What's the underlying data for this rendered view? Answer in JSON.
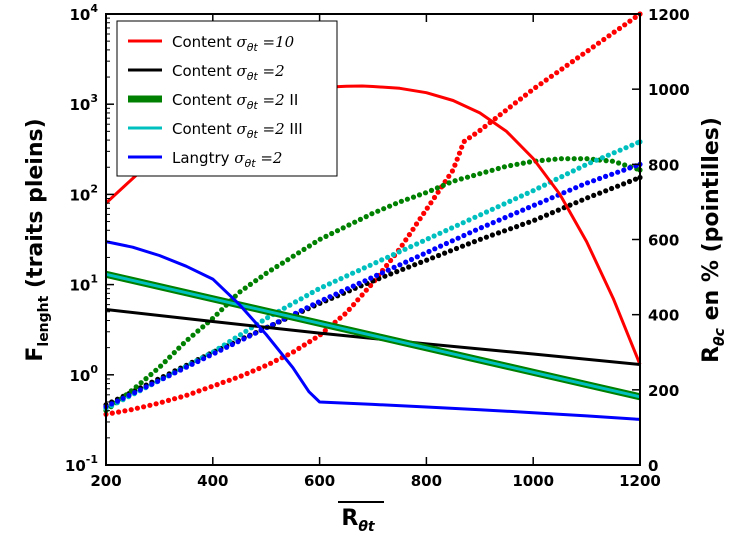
{
  "chart_data": {
    "type": "line",
    "x_axis": {
      "label": "R",
      "label_sub": "θt",
      "overline": true,
      "range": [
        200,
        1200
      ],
      "ticks": [
        200,
        400,
        600,
        800,
        1000,
        1200
      ],
      "tick_labels": [
        "200",
        "400",
        "600",
        "800",
        "1000",
        "1200"
      ]
    },
    "y_left": {
      "label": "F",
      "label_sub": "lenght",
      "label_suffix": " (traits pleins)",
      "scale": "log",
      "range": [
        0.1,
        10000
      ],
      "ticks": [
        0.1,
        1,
        10,
        100,
        1000,
        10000
      ],
      "tick_bases": [
        "10",
        "10",
        "10",
        "10",
        "10",
        "10"
      ],
      "tick_exps": [
        "-1",
        "0",
        "1",
        "2",
        "3",
        "4"
      ]
    },
    "y_right": {
      "label": "R",
      "label_sub": "θc",
      "label_suffix": " en % (pointilles)",
      "scale": "linear",
      "range": [
        0,
        1200
      ],
      "ticks": [
        0,
        200,
        400,
        600,
        800,
        1000,
        1200
      ],
      "tick_labels": [
        "0",
        "200",
        "400",
        "600",
        "800",
        "1000",
        "1200"
      ]
    },
    "legend": {
      "position": "top-left",
      "entries": [
        {
          "prefix": "Content ",
          "sub": "θt",
          "value": " =10",
          "suffix": ""
        },
        {
          "prefix": "Content ",
          "sub": "θt",
          "value": " =2",
          "suffix": ""
        },
        {
          "prefix": "Content ",
          "sub": "θt",
          "value": " =2",
          "suffix": " II"
        },
        {
          "prefix": "Content ",
          "sub": "θt",
          "value": " =2",
          "suffix": " III"
        },
        {
          "prefix": "Langtry ",
          "sub": "θt",
          "value": " =2",
          "suffix": ""
        }
      ]
    },
    "series": [
      {
        "color": "#ff0000",
        "line_width": 3,
        "solid": {
          "x": [
            200,
            250,
            300,
            350,
            400,
            450,
            500,
            550,
            600,
            650,
            680,
            700,
            750,
            800,
            850,
            900,
            950,
            1000,
            1050,
            1100,
            1150,
            1200
          ],
          "y": [
            80,
            150,
            280,
            480,
            740,
            1000,
            1230,
            1420,
            1530,
            1580,
            1590,
            1570,
            1500,
            1340,
            1100,
            800,
            500,
            250,
            100,
            30,
            7,
            1.3
          ]
        },
        "dotted": {
          "x": [
            200,
            250,
            300,
            350,
            400,
            450,
            500,
            550,
            600,
            650,
            700,
            750,
            800,
            850,
            870,
            900,
            950,
            1000,
            1050,
            1100,
            1150,
            1200
          ],
          "y": [
            135,
            148,
            165,
            185,
            210,
            235,
            265,
            300,
            345,
            405,
            485,
            575,
            680,
            785,
            860,
            890,
            945,
            1000,
            1050,
            1100,
            1150,
            1200
          ]
        }
      },
      {
        "color": "#000000",
        "line_width": 3,
        "solid": {
          "x": [
            200,
            400,
            600,
            800,
            1000,
            1200
          ],
          "y": [
            5.3,
            3.9,
            2.9,
            2.2,
            1.7,
            1.3
          ]
        },
        "dotted": {
          "x": [
            200,
            300,
            400,
            500,
            600,
            700,
            800,
            900,
            1000,
            1100,
            1200
          ],
          "y": [
            160,
            230,
            300,
            365,
            430,
            490,
            545,
            600,
            650,
            710,
            765
          ]
        }
      },
      {
        "color": "#008000",
        "line_width": 7,
        "inner_color": "#00bfbf",
        "solid": {
          "x": [
            200,
            1200
          ],
          "y": [
            13,
            0.57
          ]
        },
        "dotted": {
          "x": [
            200,
            250,
            300,
            350,
            400,
            450,
            500,
            550,
            600,
            650,
            700,
            750,
            800,
            850,
            900,
            950,
            1000,
            1050,
            1100,
            1150,
            1200
          ],
          "y": [
            145,
            200,
            260,
            330,
            390,
            460,
            510,
            555,
            600,
            635,
            670,
            700,
            725,
            755,
            775,
            795,
            808,
            815,
            815,
            808,
            785
          ]
        }
      },
      {
        "color": "#00bfbf",
        "line_width": 3,
        "solid": null,
        "dotted": {
          "x": [
            200,
            300,
            400,
            500,
            600,
            700,
            800,
            900,
            1000,
            1100,
            1200
          ],
          "y": [
            150,
            225,
            300,
            390,
            470,
            535,
            600,
            665,
            730,
            800,
            860
          ]
        }
      },
      {
        "color": "#0000ff",
        "line_width": 3,
        "solid": {
          "x": [
            200,
            250,
            300,
            350,
            400,
            450,
            500,
            550,
            580,
            600,
            700,
            800,
            900,
            1000,
            1100,
            1200
          ],
          "y": [
            30,
            26,
            21,
            16,
            11.5,
            6,
            2.8,
            1.2,
            0.65,
            0.5,
            0.47,
            0.44,
            0.41,
            0.38,
            0.35,
            0.32
          ]
        },
        "dotted": {
          "x": [
            200,
            300,
            400,
            500,
            600,
            700,
            800,
            900,
            1000,
            1100,
            1200
          ],
          "y": [
            155,
            225,
            295,
            365,
            435,
            500,
            565,
            630,
            690,
            750,
            800
          ]
        }
      }
    ]
  }
}
